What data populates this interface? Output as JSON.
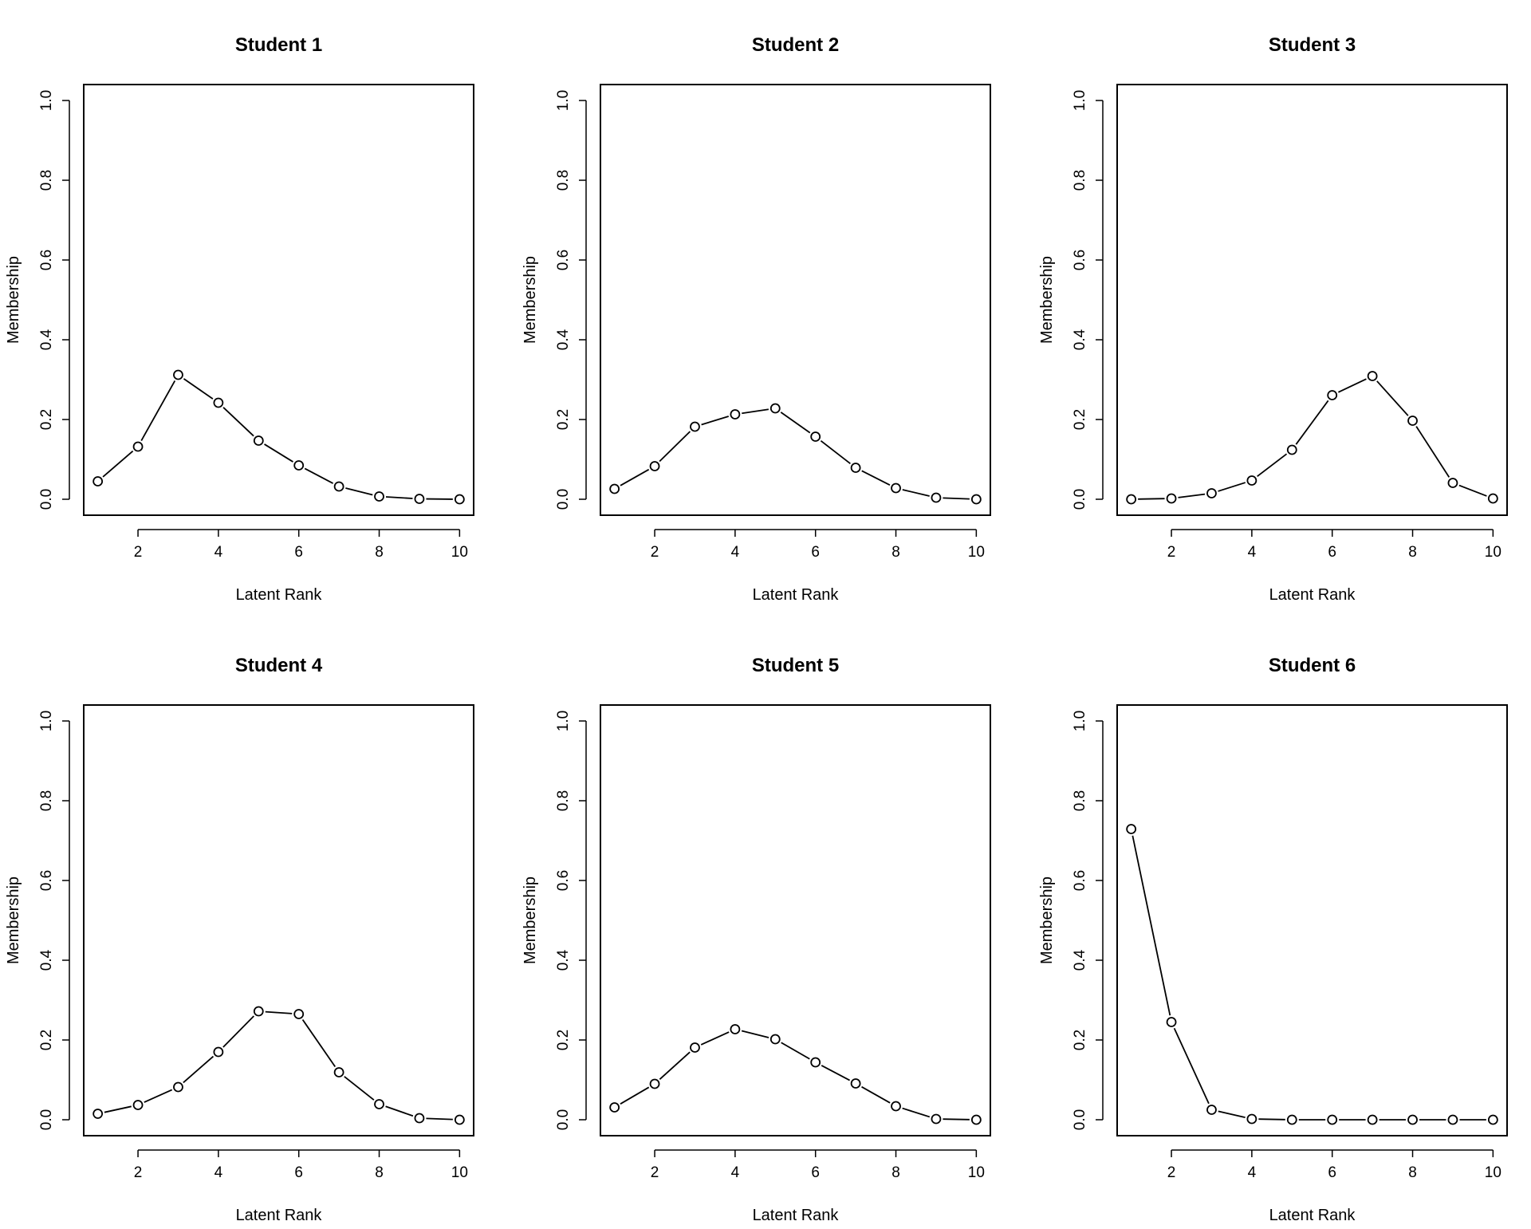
{
  "chart_data": [
    {
      "type": "line",
      "title": "Student 1",
      "xlabel": "Latent Rank",
      "ylabel": "Membership",
      "x": [
        1,
        2,
        3,
        4,
        5,
        6,
        7,
        8,
        9,
        10
      ],
      "series": [
        {
          "values": [
            0.045,
            0.132,
            0.312,
            0.242,
            0.147,
            0.085,
            0.032,
            0.007,
            0.001,
            0.0
          ]
        }
      ],
      "xticks": [
        "2",
        "4",
        "6",
        "8",
        "10"
      ],
      "yticks": [
        "0.0",
        "0.2",
        "0.4",
        "0.6",
        "0.8",
        "1.0"
      ],
      "xlim": [
        0.65,
        10.35
      ],
      "ylim": [
        -0.04,
        1.04
      ],
      "grid": false
    },
    {
      "type": "line",
      "title": "Student 2",
      "xlabel": "Latent Rank",
      "ylabel": "Membership",
      "x": [
        1,
        2,
        3,
        4,
        5,
        6,
        7,
        8,
        9,
        10
      ],
      "series": [
        {
          "values": [
            0.026,
            0.083,
            0.182,
            0.213,
            0.228,
            0.157,
            0.079,
            0.028,
            0.004,
            0.0
          ]
        }
      ],
      "xticks": [
        "2",
        "4",
        "6",
        "8",
        "10"
      ],
      "yticks": [
        "0.0",
        "0.2",
        "0.4",
        "0.6",
        "0.8",
        "1.0"
      ],
      "xlim": [
        0.65,
        10.35
      ],
      "ylim": [
        -0.04,
        1.04
      ],
      "grid": false
    },
    {
      "type": "line",
      "title": "Student 3",
      "xlabel": "Latent Rank",
      "ylabel": "Membership",
      "x": [
        1,
        2,
        3,
        4,
        5,
        6,
        7,
        8,
        9,
        10
      ],
      "series": [
        {
          "values": [
            0.0,
            0.002,
            0.015,
            0.047,
            0.124,
            0.261,
            0.309,
            0.197,
            0.041,
            0.002
          ]
        }
      ],
      "xticks": [
        "2",
        "4",
        "6",
        "8",
        "10"
      ],
      "yticks": [
        "0.0",
        "0.2",
        "0.4",
        "0.6",
        "0.8",
        "1.0"
      ],
      "xlim": [
        0.65,
        10.35
      ],
      "ylim": [
        -0.04,
        1.04
      ],
      "grid": false
    },
    {
      "type": "line",
      "title": "Student 4",
      "xlabel": "Latent Rank",
      "ylabel": "Membership",
      "x": [
        1,
        2,
        3,
        4,
        5,
        6,
        7,
        8,
        9,
        10
      ],
      "series": [
        {
          "values": [
            0.015,
            0.037,
            0.082,
            0.17,
            0.272,
            0.265,
            0.119,
            0.039,
            0.004,
            0.0
          ]
        }
      ],
      "xticks": [
        "2",
        "4",
        "6",
        "8",
        "10"
      ],
      "yticks": [
        "0.0",
        "0.2",
        "0.4",
        "0.6",
        "0.8",
        "1.0"
      ],
      "xlim": [
        0.65,
        10.35
      ],
      "ylim": [
        -0.04,
        1.04
      ],
      "grid": false
    },
    {
      "type": "line",
      "title": "Student 5",
      "xlabel": "Latent Rank",
      "ylabel": "Membership",
      "x": [
        1,
        2,
        3,
        4,
        5,
        6,
        7,
        8,
        9,
        10
      ],
      "series": [
        {
          "values": [
            0.031,
            0.09,
            0.181,
            0.227,
            0.202,
            0.144,
            0.091,
            0.034,
            0.002,
            0.0
          ]
        }
      ],
      "xticks": [
        "2",
        "4",
        "6",
        "8",
        "10"
      ],
      "yticks": [
        "0.0",
        "0.2",
        "0.4",
        "0.6",
        "0.8",
        "1.0"
      ],
      "xlim": [
        0.65,
        10.35
      ],
      "ylim": [
        -0.04,
        1.04
      ],
      "grid": false
    },
    {
      "type": "line",
      "title": "Student 6",
      "xlabel": "Latent Rank",
      "ylabel": "Membership",
      "x": [
        1,
        2,
        3,
        4,
        5,
        6,
        7,
        8,
        9,
        10
      ],
      "series": [
        {
          "values": [
            0.729,
            0.245,
            0.025,
            0.002,
            0.0,
            0.0,
            0.0,
            0.0,
            0.0,
            0.0
          ]
        }
      ],
      "xticks": [
        "2",
        "4",
        "6",
        "8",
        "10"
      ],
      "yticks": [
        "0.0",
        "0.2",
        "0.4",
        "0.6",
        "0.8",
        "1.0"
      ],
      "xlim": [
        0.65,
        10.35
      ],
      "ylim": [
        -0.04,
        1.04
      ],
      "grid": false
    }
  ]
}
